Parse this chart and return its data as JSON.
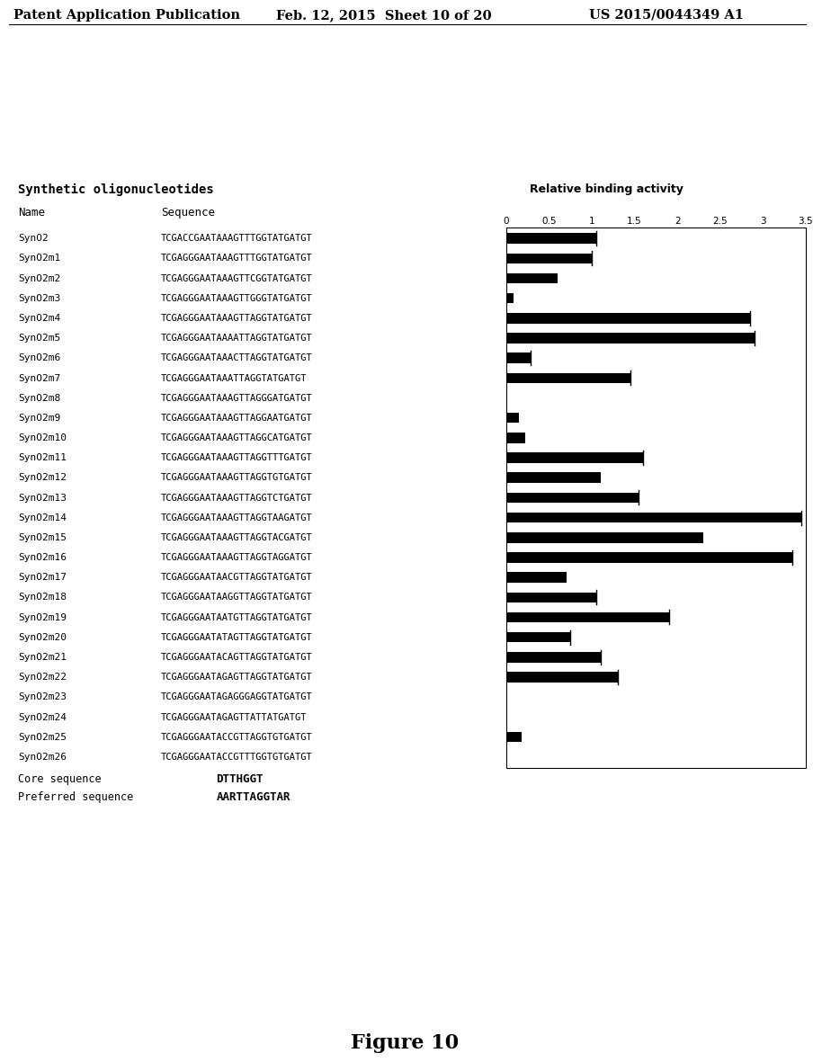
{
  "header_left": "Patent Application Publication",
  "header_middle": "Feb. 12, 2015  Sheet 10 of 20",
  "header_right": "US 2015/0044349 A1",
  "title": "Synthetic oligonucleotides",
  "col_name": "Name",
  "col_sequence": "Sequence",
  "col_binding": "Relative binding activity",
  "axis_ticks": [
    "0",
    "0.5",
    "1",
    "1.5",
    "2",
    "2.5",
    "3",
    "3.5"
  ],
  "axis_values": [
    0,
    0.5,
    1,
    1.5,
    2,
    2.5,
    3,
    3.5
  ],
  "rows": [
    {
      "name": "SynO2",
      "seq": "TCGACCGAATAAAGTTTGGTATGATGT",
      "value": 1.05,
      "has_tick": true
    },
    {
      "name": "SynO2m1",
      "seq": "TCGAGGGAATAAAGTTTGGTATGATGT",
      "value": 1.0,
      "has_tick": true
    },
    {
      "name": "SynO2m2",
      "seq": "TCGAGGGAATAAAGTTCGGTATGATGT",
      "value": 0.6,
      "has_tick": false
    },
    {
      "name": "SynO2m3",
      "seq": "TCGAGGGAATAAAGTTGGGTATGATGT",
      "value": 0.08,
      "has_tick": false
    },
    {
      "name": "SynO2m4",
      "seq": "TCGAGGGAATAAAGTTAGGTATGATGT",
      "value": 2.85,
      "has_tick": true
    },
    {
      "name": "SynO2m5",
      "seq": "TCGAGGGAATAAAATTAGGTATGATGT",
      "value": 2.9,
      "has_tick": true
    },
    {
      "name": "SynO2m6",
      "seq": "TCGAGGGAATAAACTTAGGTATGATGT",
      "value": 0.28,
      "has_tick": true
    },
    {
      "name": "SynO2m7",
      "seq": "TCGAGGGAATAAATTAGGTATGATGT",
      "value": 1.45,
      "has_tick": true
    },
    {
      "name": "SynO2m8",
      "seq": "TCGAGGGAATAAAGTTAGGGATGATGT",
      "value": 0.0,
      "has_tick": false
    },
    {
      "name": "SynO2m9",
      "seq": "TCGAGGGAATAAAGTTAGGAATGATGT",
      "value": 0.15,
      "has_tick": false
    },
    {
      "name": "SynO2m10",
      "seq": "TCGAGGGAATAAAGTTAGGCATGATGT",
      "value": 0.22,
      "has_tick": false
    },
    {
      "name": "SynO2m11",
      "seq": "TCGAGGGAATAAAGTTAGGTTTGATGT",
      "value": 1.6,
      "has_tick": true
    },
    {
      "name": "SynO2m12",
      "seq": "TCGAGGGAATAAAGTTAGGTGTGATGT",
      "value": 1.1,
      "has_tick": false
    },
    {
      "name": "SynO2m13",
      "seq": "TCGAGGGAATAAAGTTAGGTCTGATGT",
      "value": 1.55,
      "has_tick": true
    },
    {
      "name": "SynO2m14",
      "seq": "TCGAGGGAATAAAGTTAGGTAAGATGT",
      "value": 3.45,
      "has_tick": true
    },
    {
      "name": "SynO2m15",
      "seq": "TCGAGGGAATAAAGTTAGGTACGATGT",
      "value": 2.3,
      "has_tick": false
    },
    {
      "name": "SynO2m16",
      "seq": "TCGAGGGAATAAAGTTAGGTAGGATGT",
      "value": 3.35,
      "has_tick": true
    },
    {
      "name": "SynO2m17",
      "seq": "TCGAGGGAATAACGTTAGGTATGATGT",
      "value": 0.7,
      "has_tick": false
    },
    {
      "name": "SynO2m18",
      "seq": "TCGAGGGAATAAGGTTAGGTATGATGT",
      "value": 1.05,
      "has_tick": true
    },
    {
      "name": "SynO2m19",
      "seq": "TCGAGGGAATAATGTTAGGTATGATGT",
      "value": 1.9,
      "has_tick": true
    },
    {
      "name": "SynO2m20",
      "seq": "TCGAGGGAATATAGTTAGGTATGATGT",
      "value": 0.75,
      "has_tick": true
    },
    {
      "name": "SynO2m21",
      "seq": "TCGAGGGAATACAGTTAGGTATGATGT",
      "value": 1.1,
      "has_tick": true
    },
    {
      "name": "SynO2m22",
      "seq": "TCGAGGGAATAGAGTTAGGTATGATGT",
      "value": 1.3,
      "has_tick": true
    },
    {
      "name": "SynO2m23",
      "seq": "TCGAGGGAATAGAGGGAGGTATGATGT",
      "value": 0.0,
      "has_tick": false
    },
    {
      "name": "SynO2m24",
      "seq": "TCGAGGGAATAGAGTTATTATGATGT",
      "value": 0.0,
      "has_tick": false
    },
    {
      "name": "SynO2m25",
      "seq": "TCGAGGGAATACCGTTAGGTGTGATGT",
      "value": 0.18,
      "has_tick": false
    },
    {
      "name": "SynO2m26",
      "seq": "TCGAGGGAATACCGTTTGGTGTGATGT",
      "value": 0.0,
      "has_tick": false
    }
  ],
  "core_sequence_label": "Core sequence",
  "core_sequence_value": "DTTHGGT",
  "preferred_sequence_label": "Preferred sequence",
  "preferred_sequence_value": "AARTTAGGTAR",
  "figure_label": "Figure 10",
  "background_color": "#ffffff",
  "bar_color": "#000000",
  "text_color": "#000000"
}
